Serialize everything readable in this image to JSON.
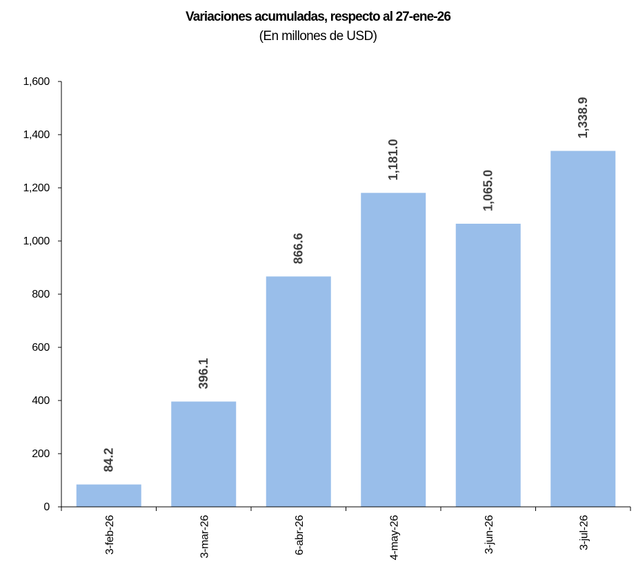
{
  "chart_data": {
    "type": "bar",
    "title": "Variaciones acumuladas, respecto al 27-ene-26",
    "subtitle": "(En millones de USD)",
    "categories": [
      "3-feb-26",
      "3-mar-26",
      "6-abr-26",
      "4-may-26",
      "3-jun-26",
      "3-jul-26"
    ],
    "values": [
      84.2,
      396.1,
      866.6,
      1181.0,
      1065.0,
      1338.9
    ],
    "data_labels": [
      "84.2",
      "396.1",
      "866.6",
      "1,181.0",
      "1,065.0",
      "1,338.9"
    ],
    "ylim": [
      0,
      1600
    ],
    "yticks": [
      0,
      200,
      400,
      600,
      800,
      1000,
      1200,
      1400,
      1600
    ],
    "ytick_labels": [
      "0",
      "200",
      "400",
      "600",
      "800",
      "1,000",
      "1,200",
      "1,400",
      "1,600"
    ],
    "xlabel": "",
    "ylabel": "",
    "grid": false,
    "legend": "none",
    "bar_color": "#99BEEA",
    "label_color": "#404040"
  }
}
